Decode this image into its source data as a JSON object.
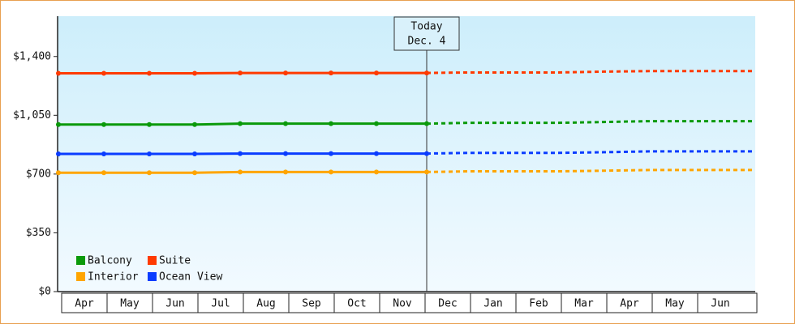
{
  "chart_data": {
    "type": "line",
    "annotation": [
      "Today",
      "Dec. 4"
    ],
    "today_index": 8,
    "categories": [
      "Apr",
      "May",
      "Jun",
      "Jul",
      "Aug",
      "Sep",
      "Oct",
      "Nov",
      "Dec",
      "Jan",
      "Feb",
      "Mar",
      "Apr",
      "May",
      "Jun"
    ],
    "ylim": [
      0,
      1640
    ],
    "yticks": [
      {
        "value": 0,
        "label": "$0"
      },
      {
        "value": 350,
        "label": "$350"
      },
      {
        "value": 700,
        "label": "$700"
      },
      {
        "value": 1050,
        "label": "$1,050"
      },
      {
        "value": 1400,
        "label": "$1,400"
      }
    ],
    "series": [
      {
        "name": "Balcony",
        "color": "#0a9a0a",
        "values": [
          995,
          995,
          995,
          995,
          1000,
          1000,
          1000,
          1000,
          1000,
          null,
          null,
          null,
          null,
          null,
          null
        ],
        "forecast": [
          null,
          null,
          null,
          null,
          null,
          null,
          null,
          null,
          1000,
          1005,
          1005,
          1005,
          1010,
          1015,
          1015
        ]
      },
      {
        "name": "Suite",
        "color": "#ff3a00",
        "values": [
          1300,
          1300,
          1300,
          1300,
          1302,
          1302,
          1302,
          1302,
          1302,
          null,
          null,
          null,
          null,
          null,
          null
        ],
        "forecast": [
          null,
          null,
          null,
          null,
          null,
          null,
          null,
          null,
          1302,
          1305,
          1305,
          1305,
          1310,
          1313,
          1313
        ]
      },
      {
        "name": "Interior",
        "color": "#ffa500",
        "values": [
          708,
          708,
          708,
          708,
          712,
          712,
          712,
          712,
          712,
          null,
          null,
          null,
          null,
          null,
          null
        ],
        "forecast": [
          null,
          null,
          null,
          null,
          null,
          null,
          null,
          null,
          712,
          716,
          716,
          716,
          720,
          724,
          724
        ]
      },
      {
        "name": "Ocean View",
        "color": "#0a3cff",
        "values": [
          820,
          820,
          820,
          820,
          822,
          822,
          822,
          822,
          822,
          null,
          null,
          null,
          null,
          null,
          null
        ],
        "forecast": [
          null,
          null,
          null,
          null,
          null,
          null,
          null,
          null,
          822,
          826,
          826,
          826,
          830,
          835,
          835
        ]
      }
    ]
  }
}
